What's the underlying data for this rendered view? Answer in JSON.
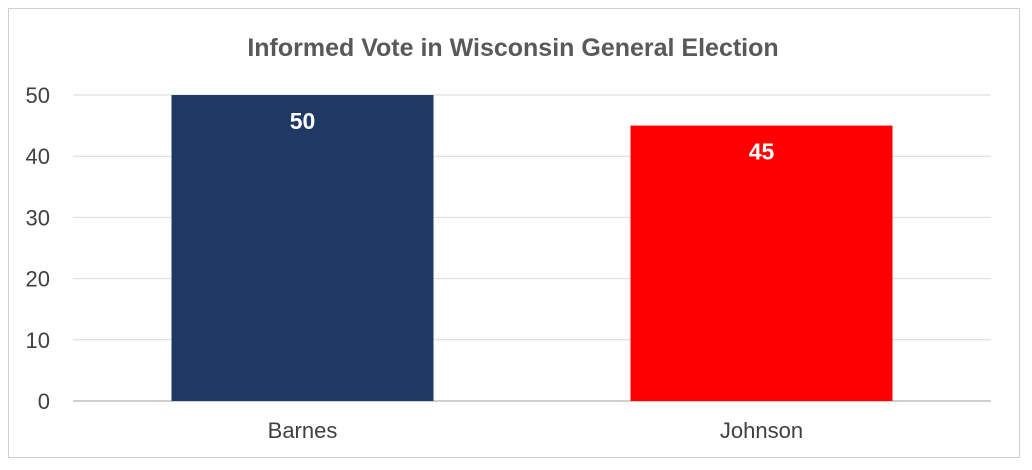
{
  "chart_data": {
    "type": "bar",
    "title": "Informed Vote in Wisconsin General Election",
    "categories": [
      "Barnes",
      "Johnson"
    ],
    "values": [
      50,
      45
    ],
    "data_labels": [
      "50",
      "45"
    ],
    "colors": [
      "#203864",
      "#ff0000"
    ],
    "ylim": [
      0,
      50
    ],
    "yticks": [
      0,
      10,
      20,
      30,
      40,
      50
    ],
    "ytick_labels": [
      "0",
      "10",
      "20",
      "30",
      "40",
      "50"
    ],
    "grid": true,
    "legend": "none",
    "gridline_color": "#d9d9d9",
    "axis_color": "#bfbfbf"
  }
}
